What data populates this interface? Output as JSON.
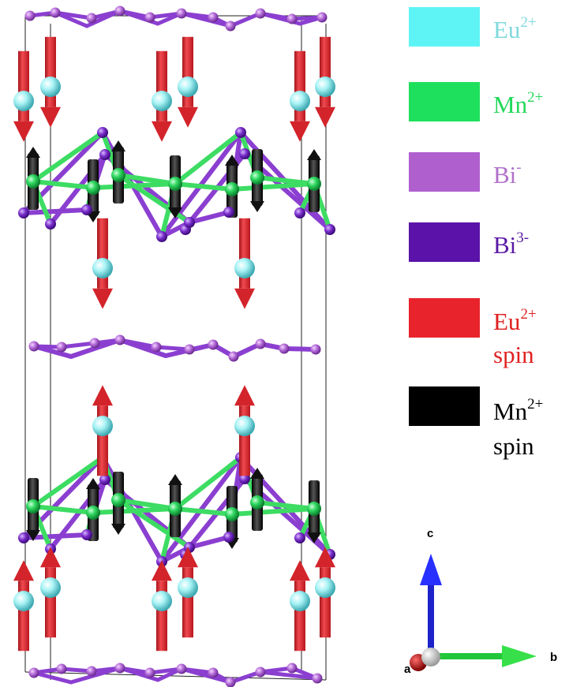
{
  "colors": {
    "eu": "#5ef4f6",
    "eu_text": "#7fd9dd",
    "mn": "#1fe05c",
    "mn_text": "#22d85a",
    "bi_minus": "#b05fcf",
    "bi_minus_text": "#b071c9",
    "bi_3minus": "#5b12a8",
    "bi_3minus_text": "#5a1aa5",
    "eu_spin": "#e8232b",
    "eu_spin_text": "#e02020",
    "mn_spin": "#000000",
    "mn_spin_text": "#000000",
    "bond_bi": "#8b3fd0",
    "bond_mn": "#3ddc63",
    "atom_bi_light": "#b46ad8",
    "atom_bi_dark": "#7a2ecb"
  },
  "legend": [
    {
      "base": "Eu",
      "sup": "2+",
      "second_line": "",
      "color_key": "eu",
      "text_color_key": "eu_text"
    },
    {
      "base": "Mn",
      "sup": "2+",
      "second_line": "",
      "color_key": "mn",
      "text_color_key": "mn_text"
    },
    {
      "base": "Bi",
      "sup": "-",
      "second_line": "",
      "color_key": "bi_minus",
      "text_color_key": "bi_minus_text"
    },
    {
      "base": "Bi",
      "sup": "3-",
      "second_line": "",
      "color_key": "bi_3minus",
      "text_color_key": "bi_3minus_text"
    },
    {
      "base": "Eu",
      "sup": "2+",
      "second_line": "spin",
      "color_key": "eu_spin",
      "text_color_key": "eu_spin_text"
    },
    {
      "base": "Mn",
      "sup": "2+",
      "second_line": "spin",
      "color_key": "mn_spin",
      "text_color_key": "mn_spin_text"
    }
  ],
  "axes": {
    "c": "c",
    "b": "b",
    "a": "a"
  },
  "icons": [
    "unit-cell-outline",
    "eu-spin-arrow",
    "mn-spin-arrow",
    "crystal-axes-icon"
  ]
}
